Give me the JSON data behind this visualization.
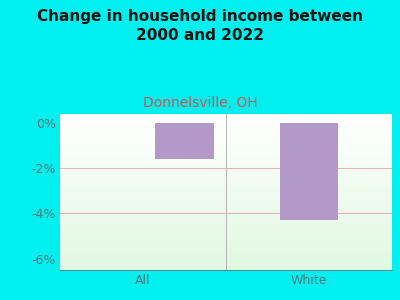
{
  "title": "Change in household income between\n2000 and 2022",
  "subtitle": "Donnelsville, OH",
  "categories": [
    "All",
    "White"
  ],
  "values": [
    -1.6,
    -4.3
  ],
  "bar_color": "#b399c8",
  "background_color": "#00f0f0",
  "grid_color": "#e8b0b0",
  "title_color": "#111111",
  "subtitle_color": "#cc5555",
  "tick_color": "#557777",
  "ylim": [
    -6.5,
    0.4
  ],
  "yticks": [
    0,
    -2,
    -4,
    -6
  ],
  "ytick_labels": [
    "0%",
    "-2%",
    "-4%",
    "-6%"
  ],
  "title_fontsize": 11,
  "subtitle_fontsize": 10,
  "tick_fontsize": 9,
  "bar_width": 0.35,
  "divider_color": "#aaaaaa"
}
